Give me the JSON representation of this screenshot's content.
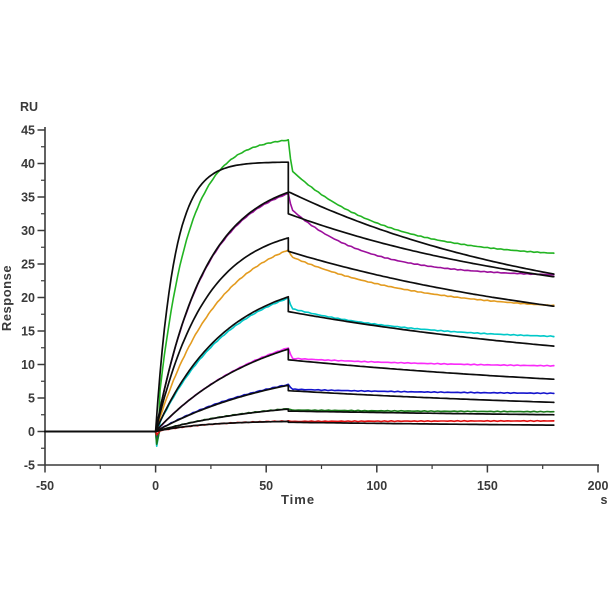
{
  "chart_data": {
    "type": "line",
    "title": "",
    "xlabel": "Time",
    "x_unit_label": "s",
    "ylabel": "Response",
    "y_unit_label": "RU",
    "xlim": [
      -50,
      200
    ],
    "ylim": [
      -5,
      45
    ],
    "xticks_major": [
      -50,
      0,
      50,
      100,
      150,
      200
    ],
    "xticks_minor": [
      -25,
      25,
      75,
      125,
      175
    ],
    "yticks_major": [
      -5,
      0,
      5,
      10,
      15,
      20,
      25,
      30,
      35,
      40,
      45
    ],
    "yticks_minor": [
      -2.5,
      2.5,
      7.5,
      12.5,
      17.5,
      22.5,
      27.5,
      32.5,
      37.5,
      42.5
    ],
    "grid": "off",
    "legend": "none",
    "axis_color": "#3a3a3a",
    "fit_color": "#0d0d0d",
    "baseline_start": -50,
    "association_start": 0,
    "association_end": 60,
    "dissociation_end": 180,
    "series": [
      {
        "name": "green-data",
        "role": "data",
        "color": "#22b422",
        "dip0": -1.7,
        "ka": 0.075,
        "r60": 43.5,
        "r60_post": 38.8,
        "kd": 0.0235,
        "r180": 26.6
      },
      {
        "name": "purple-data",
        "role": "data",
        "color": "#9c0f9c",
        "dip0": -1.4,
        "ka": 0.045,
        "r60": 35.5,
        "r60_post": 33.0,
        "kd": 0.03,
        "r180": 23.4
      },
      {
        "name": "orange-data",
        "role": "data",
        "color": "#e39b1f",
        "dip0": -0.9,
        "ka": 0.035,
        "r60": 27.1,
        "r60_post": 26.0,
        "kd": 0.017,
        "r180": 18.8
      },
      {
        "name": "cyan-data",
        "role": "data",
        "color": "#00c8c8",
        "dip0": -2.2,
        "ka": 0.03,
        "r60": 19.9,
        "r60_post": 18.3,
        "kd": 0.018,
        "r180": 14.2
      },
      {
        "name": "magenta-data",
        "role": "data",
        "color": "#f92bf9",
        "dip0": -1.3,
        "ka": 0.02,
        "r60": 12.5,
        "r60_post": 10.9,
        "kd": 0.012,
        "r180": 9.8
      },
      {
        "name": "blue-data",
        "role": "data",
        "color": "#1414cc",
        "dip0": -0.9,
        "ka": 0.018,
        "r60": 7.0,
        "r60_post": 6.3,
        "kd": 0.012,
        "r180": 5.7
      },
      {
        "name": "darkgreen-data",
        "role": "data",
        "color": "#1a7a1a",
        "dip0": -1.9,
        "ka": 0.02,
        "r60": 3.4,
        "r60_post": 3.2,
        "kd": 0.01,
        "r180": 2.95
      },
      {
        "name": "red-data",
        "role": "data",
        "color": "#e01010",
        "dip0": -0.5,
        "ka": 0.04,
        "r60": 1.55,
        "r60_post": 1.5,
        "kd": 0.01,
        "r180": 1.58
      },
      {
        "name": "green-fit",
        "role": "fit",
        "color": "#0d0d0d",
        "dip0": 0,
        "ka": 0.12,
        "r60": 40.2,
        "r60_post": 35.8,
        "kd": 0.008,
        "r180": 23.5
      },
      {
        "name": "purple-fit",
        "role": "fit",
        "color": "#0d0d0d",
        "dip0": 0,
        "ka": 0.045,
        "r60": 35.7,
        "r60_post": 32.5,
        "kd": 0.008,
        "r180": 23.1
      },
      {
        "name": "orange-fit",
        "role": "fit",
        "color": "#0d0d0d",
        "dip0": 0,
        "ka": 0.045,
        "r60": 28.9,
        "r60_post": 26.9,
        "kd": 0.007,
        "r180": 18.7
      },
      {
        "name": "cyan-fit",
        "role": "fit",
        "color": "#0d0d0d",
        "dip0": 0,
        "ka": 0.032,
        "r60": 20.1,
        "r60_post": 17.9,
        "kd": 0.006,
        "r180": 12.75
      },
      {
        "name": "magenta-fit",
        "role": "fit",
        "color": "#0d0d0d",
        "dip0": 0,
        "ka": 0.021,
        "r60": 12.3,
        "r60_post": 10.7,
        "kd": 0.005,
        "r180": 7.8
      },
      {
        "name": "blue-fit",
        "role": "fit",
        "color": "#0d0d0d",
        "dip0": 0,
        "ka": 0.017,
        "r60": 6.9,
        "r60_post": 6.1,
        "kd": 0.005,
        "r180": 4.35
      },
      {
        "name": "darkgreen-fit",
        "role": "fit",
        "color": "#0d0d0d",
        "dip0": 0,
        "ka": 0.02,
        "r60": 3.35,
        "r60_post": 3.05,
        "kd": 0.004,
        "r180": 2.5
      },
      {
        "name": "red-fit",
        "role": "fit",
        "color": "#0d0d0d",
        "dip0": 0,
        "ka": 0.045,
        "r60": 1.5,
        "r60_post": 1.38,
        "kd": 0.004,
        "r180": 0.95
      }
    ]
  }
}
